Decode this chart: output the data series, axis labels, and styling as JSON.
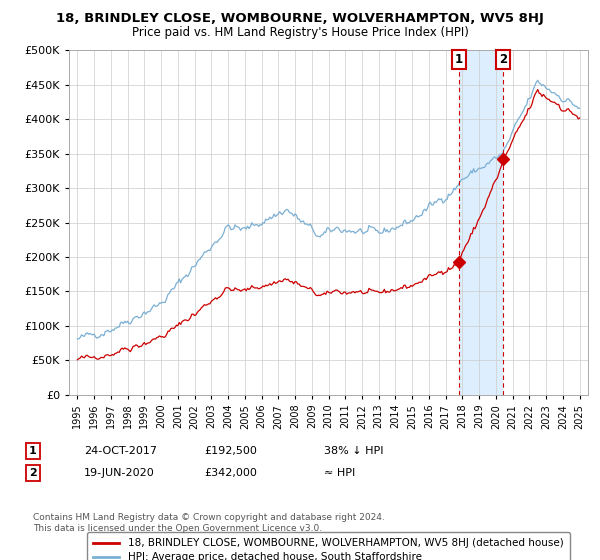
{
  "title": "18, BRINDLEY CLOSE, WOMBOURNE, WOLVERHAMPTON, WV5 8HJ",
  "subtitle": "Price paid vs. HM Land Registry's House Price Index (HPI)",
  "legend_line1": "18, BRINDLEY CLOSE, WOMBOURNE, WOLVERHAMPTON, WV5 8HJ (detached house)",
  "legend_line2": "HPI: Average price, detached house, South Staffordshire",
  "annotation1_date": "24-OCT-2017",
  "annotation1_price": "£192,500",
  "annotation1_note": "38% ↓ HPI",
  "annotation2_date": "19-JUN-2020",
  "annotation2_price": "£342,000",
  "annotation2_note": "≈ HPI",
  "footnote1": "Contains HM Land Registry data © Crown copyright and database right 2024.",
  "footnote2": "This data is licensed under the Open Government Licence v3.0.",
  "red_color": "#cc0000",
  "blue_color": "#7bafd4",
  "highlight_color": "#ddeeff",
  "marker1_year": 2017.8,
  "marker2_year": 2020.45,
  "ylim": [
    0,
    500000
  ],
  "xlim_start": 1994.5,
  "xlim_end": 2025.5
}
